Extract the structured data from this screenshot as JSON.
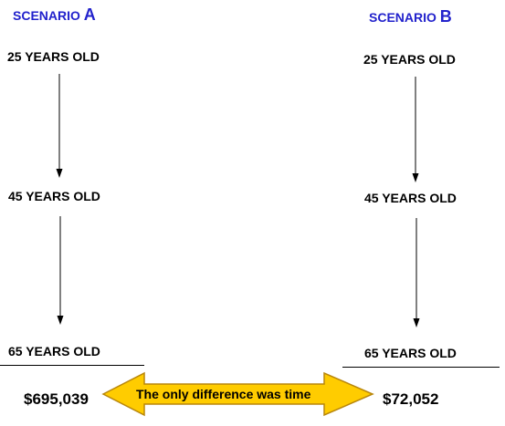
{
  "scenario_a": {
    "title_prefix": "SCENARIO ",
    "title_letter": "A",
    "ages": [
      "25 YEARS OLD",
      "45 YEARS OLD",
      "65 YEARS OLD"
    ],
    "amount": "$695,039"
  },
  "scenario_b": {
    "title_prefix": "SCENARIO ",
    "title_letter": "B",
    "ages": [
      "25 YEARS OLD",
      "45 YEARS OLD",
      "65 YEARS OLD"
    ],
    "amount": "$72,052"
  },
  "banner": {
    "text": "The only difference was time",
    "fill_color": "#ffcc00",
    "stroke_color": "#b8860b"
  },
  "colors": {
    "title": "#2222cc"
  }
}
